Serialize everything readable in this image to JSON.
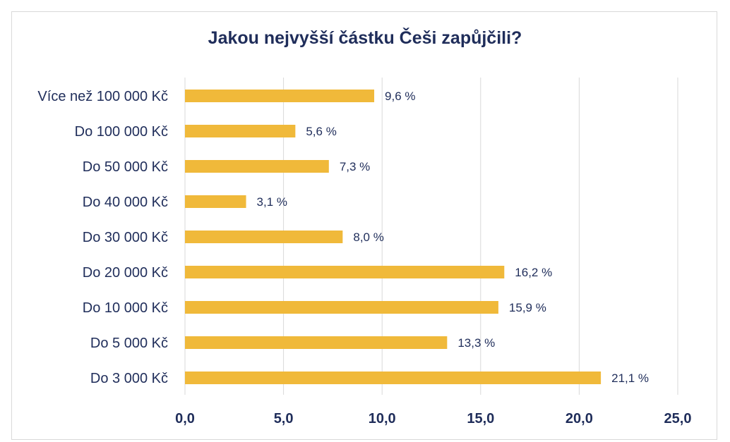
{
  "chart_data": {
    "type": "bar",
    "orientation": "horizontal",
    "title": "Jakou nejvyšší částku Češi zapůjčili?",
    "xlabel": "",
    "ylabel": "",
    "categories": [
      "Více než 100 000 Kč",
      "Do 100 000 Kč",
      "Do 50 000 Kč",
      "Do 40 000 Kč",
      "Do 30 000 Kč",
      "Do 20 000 Kč",
      "Do 10 000 Kč",
      "Do 5 000 Kč",
      "Do 3 000 Kč"
    ],
    "values": [
      9.6,
      5.6,
      7.3,
      3.1,
      8.0,
      16.2,
      15.9,
      13.3,
      21.1
    ],
    "value_labels": [
      "9,6 %",
      "5,6 %",
      "7,3 %",
      "3,1 %",
      "8,0 %",
      "16,2 %",
      "15,9 %",
      "13,3 %",
      "21,1 %"
    ],
    "xlim": [
      0,
      25
    ],
    "x_ticks": [
      0,
      5,
      10,
      15,
      20,
      25
    ],
    "x_tick_labels": [
      "0,0",
      "5,0",
      "10,0",
      "15,0",
      "20,0",
      "25,0"
    ],
    "grid": "vertical",
    "legend": "none",
    "colors": {
      "bar": "#f0b93a",
      "text": "#1f2d5a",
      "grid": "#d9d9d9"
    }
  }
}
